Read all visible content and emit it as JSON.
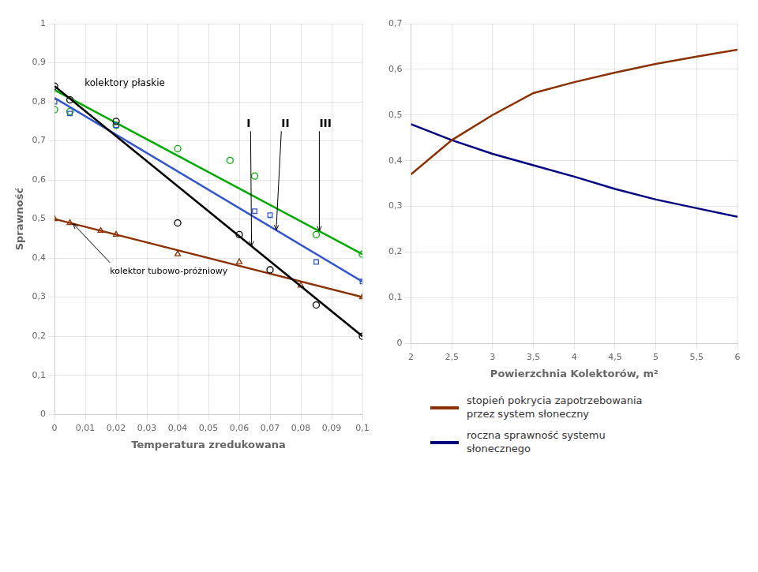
{
  "chart_data": [
    {
      "type": "scatter",
      "xlabel": "Temperatura zredukowana",
      "ylabel": "Sprawność",
      "xlim": [
        0,
        0.1
      ],
      "ylim": [
        0,
        1.0
      ],
      "xticks": [
        0,
        {
          "value": 0.01,
          "label": "0,01"
        },
        {
          "value": 0.02,
          "label": "0,02"
        },
        {
          "value": 0.03,
          "label": "0,03"
        },
        {
          "value": 0.04,
          "label": "0,04"
        },
        {
          "value": 0.05,
          "label": "0,05"
        },
        {
          "value": 0.06,
          "label": "0,06"
        },
        {
          "value": 0.07,
          "label": "0,07"
        },
        {
          "value": 0.08,
          "label": "0,08"
        },
        {
          "value": 0.09,
          "label": "0,09"
        },
        {
          "value": 0.1,
          "label": "0,1"
        }
      ],
      "yticks": [
        0,
        {
          "value": 0.1,
          "label": "0,1"
        },
        {
          "value": 0.2,
          "label": "0,2"
        },
        {
          "value": 0.3,
          "label": "0,3"
        },
        {
          "value": 0.4,
          "label": "0,4"
        },
        {
          "value": 0.5,
          "label": "0,5"
        },
        {
          "value": 0.6,
          "label": "0,6"
        },
        {
          "value": 0.7,
          "label": "0,7"
        },
        {
          "value": 0.8,
          "label": "0,8"
        },
        {
          "value": 0.9,
          "label": "0,9"
        },
        1
      ],
      "grid": true,
      "series": [
        {
          "type": "line",
          "color": "#000000",
          "x": [
            0,
            0.1
          ],
          "values": [
            0.84,
            0.2
          ]
        },
        {
          "type": "scatter",
          "marker": "circle",
          "color": "#000000",
          "x": [
            0.0,
            0.005,
            0.02,
            0.04,
            0.06,
            0.07,
            0.085,
            0.1
          ],
          "values": [
            0.84,
            0.805,
            0.75,
            0.49,
            0.46,
            0.37,
            0.28,
            0.2
          ]
        },
        {
          "type": "line",
          "color": "#3355cc",
          "x": [
            0,
            0.1
          ],
          "values": [
            0.81,
            0.34
          ]
        },
        {
          "type": "scatter",
          "marker": "square",
          "color": "#3355cc",
          "x": [
            0.0,
            0.005,
            0.02,
            0.065,
            0.07,
            0.085,
            0.1
          ],
          "values": [
            0.8,
            0.77,
            0.74,
            0.52,
            0.51,
            0.39,
            0.34
          ]
        },
        {
          "type": "line",
          "color": "#00aa00",
          "x": [
            0,
            0.1
          ],
          "values": [
            0.83,
            0.41
          ]
        },
        {
          "type": "scatter",
          "marker": "circle",
          "color": "#00aa00",
          "x": [
            0.0,
            0.005,
            0.02,
            0.04,
            0.057,
            0.065,
            0.085,
            0.1
          ],
          "values": [
            0.78,
            0.775,
            0.74,
            0.68,
            0.65,
            0.61,
            0.46,
            0.41
          ]
        },
        {
          "type": "line",
          "color": "#8b3000",
          "x": [
            0,
            0.1
          ],
          "values": [
            0.5,
            0.3
          ]
        },
        {
          "type": "scatter",
          "marker": "triangle",
          "color": "#8b3000",
          "x": [
            0.0,
            0.005,
            0.015,
            0.02,
            0.04,
            0.06,
            0.08,
            0.1
          ],
          "values": [
            0.5,
            0.49,
            0.47,
            0.46,
            0.41,
            0.39,
            0.33,
            0.3
          ]
        }
      ],
      "annotations": [
        "kolektory płaskie",
        "I",
        "II",
        "III",
        "kolektor tubowo-próżniowy"
      ]
    },
    {
      "type": "line",
      "xlabel": "Powierzchnia Kolektorów, m²",
      "xlim": [
        2,
        6
      ],
      "ylim": [
        0,
        0.7
      ],
      "xticks": [
        2,
        {
          "value": 2.5,
          "label": "2,5"
        },
        3,
        {
          "value": 3.5,
          "label": "3,5"
        },
        4,
        {
          "value": 4.5,
          "label": "4,5"
        },
        5,
        {
          "value": 5.5,
          "label": "5,5"
        },
        6
      ],
      "yticks": [
        0,
        {
          "value": 0.1,
          "label": "0,1"
        },
        {
          "value": 0.2,
          "label": "0,2"
        },
        {
          "value": 0.3,
          "label": "0,3"
        },
        {
          "value": 0.4,
          "label": "0,4"
        },
        {
          "value": 0.5,
          "label": "0,5"
        },
        {
          "value": 0.6,
          "label": "0,6"
        },
        {
          "value": 0.7,
          "label": "0,7"
        }
      ],
      "grid": true,
      "legend": "bottom",
      "series": [
        {
          "name": "stopień pokrycia zapotrzebowania\nprzez system słoneczny",
          "color": "#8b3000",
          "x": [
            2,
            2.5,
            3,
            3.5,
            4,
            4.5,
            5,
            5.5,
            6
          ],
          "values": [
            0.37,
            0.445,
            0.5,
            0.548,
            0.572,
            0.593,
            0.612,
            0.628,
            0.643
          ]
        },
        {
          "name": "roczna sprawność systemu\nsłonecznego",
          "color": "#000080",
          "x": [
            2,
            2.5,
            3,
            3.5,
            4,
            4.5,
            5,
            5.5,
            6
          ],
          "values": [
            0.48,
            0.445,
            0.415,
            0.39,
            0.365,
            0.338,
            0.315,
            0.296,
            0.277
          ]
        }
      ]
    }
  ]
}
